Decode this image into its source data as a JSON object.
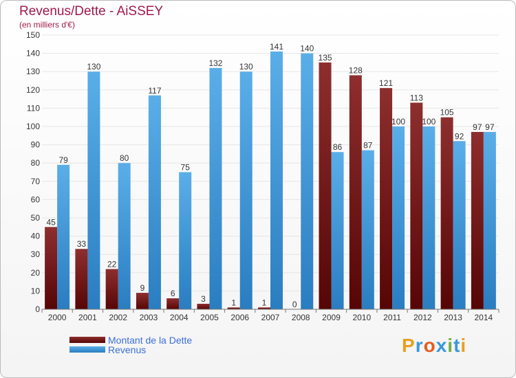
{
  "header": {
    "title": "Revenus/Dette - AiSSEY",
    "subtitle": "(en milliers d'€)"
  },
  "legend": {
    "items": [
      {
        "label": "Montant de la Dette",
        "color": "#6b0e0e"
      },
      {
        "label": "Revenus",
        "color": "#3a98dc"
      }
    ]
  },
  "logo": {
    "letters": [
      "P",
      "r",
      "o",
      "x",
      "i",
      "t",
      "i"
    ],
    "colors": [
      "#e8a020",
      "#3a98dc",
      "#e85a20",
      "#3a98dc",
      "#70b040",
      "#3a98dc",
      "#e8a020"
    ]
  },
  "colors": {
    "dette": "#6b0e0e",
    "revenus": "#3a98dc",
    "text": "#a0184a",
    "axis_text": "#333333",
    "grid": "#e6e6e6"
  },
  "chart_data": {
    "type": "bar",
    "categories": [
      "2000",
      "2001",
      "2002",
      "2003",
      "2004",
      "2005",
      "2006",
      "2007",
      "2008",
      "2009",
      "2010",
      "2011",
      "2012",
      "2013",
      "2014"
    ],
    "series": [
      {
        "name": "Montant de la Dette",
        "values": [
          45,
          33,
          22,
          9,
          6,
          3,
          1,
          1,
          0,
          135,
          128,
          121,
          113,
          105,
          97
        ]
      },
      {
        "name": "Revenus",
        "values": [
          79,
          130,
          80,
          117,
          75,
          132,
          130,
          141,
          140,
          86,
          87,
          100,
          100,
          92,
          97
        ]
      }
    ],
    "ylim": [
      0,
      150
    ],
    "yticks": [
      0,
      10,
      20,
      30,
      40,
      50,
      60,
      70,
      80,
      90,
      100,
      110,
      120,
      130,
      140,
      150
    ],
    "grid": true,
    "data_labels": true,
    "legend_position": "bottom-left"
  }
}
